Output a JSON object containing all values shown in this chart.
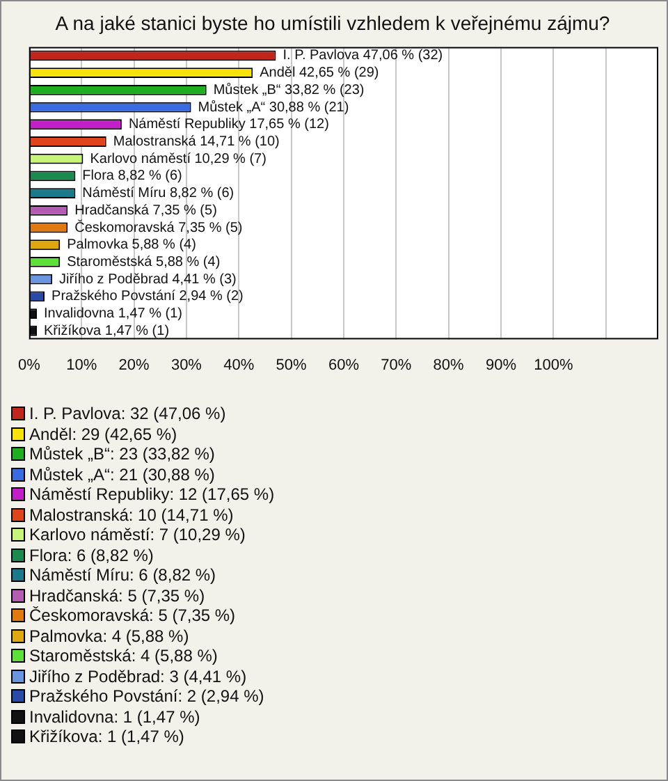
{
  "chart_data": {
    "type": "bar",
    "orientation": "horizontal",
    "title": "A na jaké stanici byste ho umístili vzhledem k veřejnému zájmu?",
    "categories": [
      "I. P. Pavlova",
      "Anděl",
      "Můstek „B“",
      "Můstek „A“",
      "Náměstí Republiky",
      "Malostranská",
      "Karlovo náměstí",
      "Flora",
      "Náměstí Míru",
      "Hradčanská",
      "Českomoravská",
      "Palmovka",
      "Staroměstská",
      "Jiřího z Poděbrad",
      "Pražského Povstání",
      "Invalidovna",
      "Křižíkova"
    ],
    "values": [
      47.06,
      42.65,
      33.82,
      30.88,
      17.65,
      14.71,
      10.29,
      8.82,
      8.82,
      7.35,
      7.35,
      5.88,
      5.88,
      4.41,
      2.94,
      1.47,
      1.47
    ],
    "value_labels": [
      "47,06 % (32)",
      "42,65 % (29)",
      "33,82 % (23)",
      "30,88 % (21)",
      "17,65 % (12)",
      "14,71 % (10)",
      "10,29 % (7)",
      "8,82 % (6)",
      "8,82 % (6)",
      "7,35 % (5)",
      "7,35 % (5)",
      "5,88 % (4)",
      "5,88 % (4)",
      "4,41 % (3)",
      "2,94 % (2)",
      "1,47 % (1)",
      "1,47 % (1)"
    ],
    "colors": [
      "#c0261c",
      "#f5e20a",
      "#1fae1f",
      "#3a6be0",
      "#c21fc8",
      "#e0441a",
      "#c6f57a",
      "#1a8a4e",
      "#1a7a8a",
      "#b45cb4",
      "#e07a10",
      "#e0a810",
      "#5ee03a",
      "#6a96e0",
      "#2a4aa8",
      "#111111",
      "#111111"
    ],
    "xlim": [
      0,
      120
    ],
    "xticks": [
      {
        "value": 0,
        "label": "0%"
      },
      {
        "value": 10,
        "label": "10%"
      },
      {
        "value": 20,
        "label": "20%"
      },
      {
        "value": 30,
        "label": "30%"
      },
      {
        "value": 40,
        "label": "40%"
      },
      {
        "value": 50,
        "label": "50%"
      },
      {
        "value": 60,
        "label": "60%"
      },
      {
        "value": 70,
        "label": "70%"
      },
      {
        "value": 80,
        "label": "80%"
      },
      {
        "value": 90,
        "label": "90%"
      },
      {
        "value": 100,
        "label": "100%"
      },
      {
        "value": 110,
        "label": null
      }
    ],
    "grid": "x",
    "tick_labels": "x",
    "annotations": [
      "I. P. Pavlova: 32 (47,06 %)",
      "Anděl: 29 (42,65 %)",
      "Můstek „B“: 23 (33,82 %)",
      "Můstek „A“: 21 (30,88 %)",
      "Náměstí Republiky: 12 (17,65 %)",
      "Malostranská: 10 (14,71 %)",
      "Karlovo náměstí: 7 (10,29 %)",
      "Flora: 6 (8,82 %)",
      "Náměstí Míru: 6 (8,82 %)",
      "Hradčanská: 5 (7,35 %)",
      "Českomoravská: 5 (7,35 %)",
      "Palmovka: 4 (5,88 %)",
      "Staroměstská: 4 (5,88 %)",
      "Jiřího z Poděbrad: 3 (4,41 %)",
      "Pražského Povstání: 2 (2,94 %)",
      "Invalidovna: 1 (1,47 %)",
      "Křižíkova: 1 (1,47 %)"
    ]
  }
}
